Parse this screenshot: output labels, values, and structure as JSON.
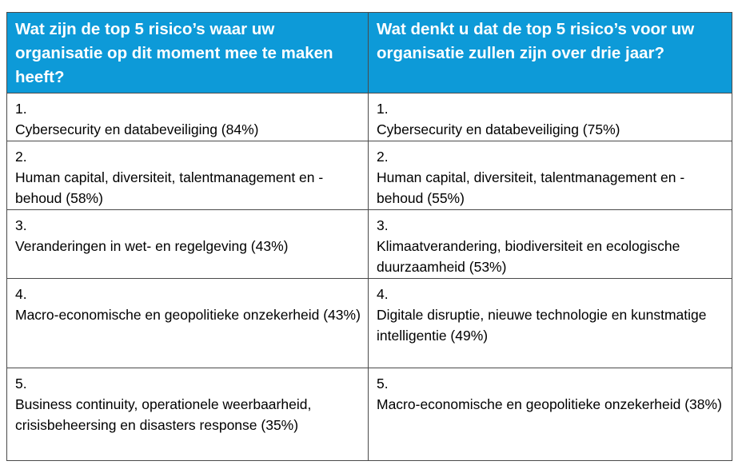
{
  "table": {
    "headers": [
      "Wat zijn de top 5 risico’s waar uw organisatie op dit moment mee te maken heeft?",
      "Wat denkt u dat de top 5 risico’s voor uw organisatie zullen zijn over drie jaar?"
    ],
    "rows": [
      [
        {
          "num": "1.",
          "text": "Cybersecurity en databeveiliging (84%)"
        },
        {
          "num": "1.",
          "text": "Cybersecurity en databeveiliging (75%)"
        }
      ],
      [
        {
          "num": "2.",
          "text": "Human capital, diversiteit, talentmanagement en -behoud (58%)"
        },
        {
          "num": "2.",
          "text": "Human capital, diversiteit, talentmanagement en -behoud (55%)"
        }
      ],
      [
        {
          "num": "3.",
          "text": "Veranderingen in wet- en regelgeving (43%)"
        },
        {
          "num": "3.",
          "text": "Klimaatverandering, biodiversiteit en ecologische duurzaamheid (53%)"
        }
      ],
      [
        {
          "num": "4.",
          "text": "Macro-economische en geopolitieke onzekerheid (43%)"
        },
        {
          "num": "4.",
          "text": "Digitale disruptie, nieuwe technologie en kunstmatige intelligentie (49%)"
        }
      ],
      [
        {
          "num": "5.",
          "text": "Business continuity, operationele weerbaarheid, crisisbeheersing en disasters response (35%)"
        },
        {
          "num": "5.",
          "text": "Macro-economische en geopolitieke onzekerheid (38%)"
        }
      ]
    ]
  }
}
